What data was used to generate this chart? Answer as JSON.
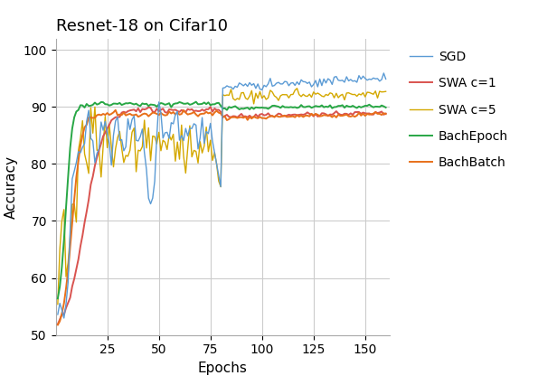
{
  "title": "Resnet-18 on Cifar10",
  "xlabel": "Epochs",
  "ylabel": "Accuracy",
  "xlim": [
    0,
    162
  ],
  "ylim": [
    50,
    102
  ],
  "yticks": [
    50,
    60,
    70,
    80,
    90,
    100
  ],
  "xticks": [
    25,
    50,
    75,
    100,
    125,
    150
  ],
  "colors": {
    "SGD": "#5b9bd5",
    "SWA_c1": "#d9534f",
    "SWA_c5": "#d4a800",
    "BachEpoch": "#28a745",
    "BachBatch": "#e8701a"
  },
  "legend_labels": [
    "SGD",
    "SWA c=1",
    "SWA c=5",
    "BachEpoch",
    "BachBatch"
  ],
  "title_fontsize": 13,
  "label_fontsize": 11,
  "legend_fontsize": 10,
  "tick_fontsize": 10,
  "background_color": "#ffffff",
  "grid_color": "#cccccc"
}
